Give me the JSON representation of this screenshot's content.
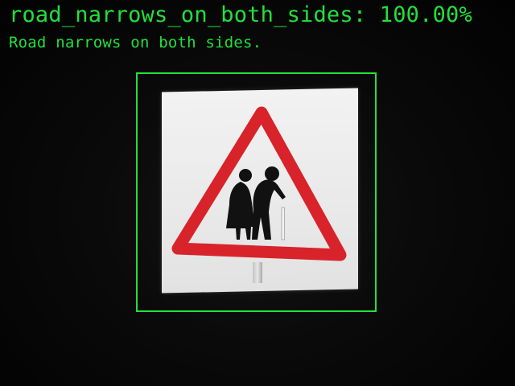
{
  "detection": {
    "label_line": "road_narrows_on_both_sides: 100.00%",
    "description": "Road narrows on both sides."
  },
  "colors": {
    "overlay_green": "#22e03a",
    "sign_red": "#d8232a",
    "sign_white": "#efefef",
    "figure_black": "#111111"
  },
  "icons": {
    "sign": "elderly-people-warning-triangle-icon"
  }
}
